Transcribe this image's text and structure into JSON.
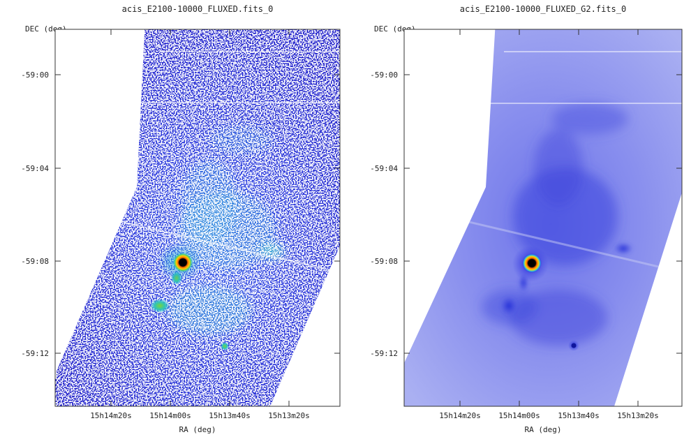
{
  "chart_data": [
    {
      "type": "heatmap",
      "title": "acis_E2100-10000_FLUXED.fits_0",
      "xlabel": "RA (deg)",
      "ylabel": "DEC (deg)",
      "x_tick_labels": [
        "15h14m20s",
        "15h14m00s",
        "15h13m40s",
        "15h13m20s"
      ],
      "y_tick_labels": [
        "-59:00",
        "-59:04",
        "-59:08",
        "-59:12"
      ],
      "colormap": [
        "#ffffff",
        "#1a1adc",
        "#2fc4dc",
        "#c8e02a",
        "#ff6a00",
        "#000000"
      ],
      "grid": false,
      "style": "raw",
      "image_description_features": "counts map: noisy pointillistic coverage tile; bright point source with jet and knots"
    },
    {
      "type": "heatmap",
      "title": "acis_E2100-10000_FLUXED_G2.fits_0",
      "xlabel": "RA (deg)",
      "ylabel": "DEC (deg)",
      "x_tick_labels": [
        "15h14m20s",
        "15h14m00s",
        "15h13m40s",
        "15h13m20s"
      ],
      "y_tick_labels": [
        "-59:00",
        "-59:04",
        "-59:08",
        "-59:12"
      ],
      "colormap": [
        "#ffffff",
        "#c8ccf6",
        "#5c64e6",
        "#1a1adc",
        "#ff6a00",
        "#000000"
      ],
      "grid": false,
      "style": "smoothed",
      "image_description_features": "smoothed map: diffuse blue coverage tile; bright point source with jet and knots"
    }
  ]
}
